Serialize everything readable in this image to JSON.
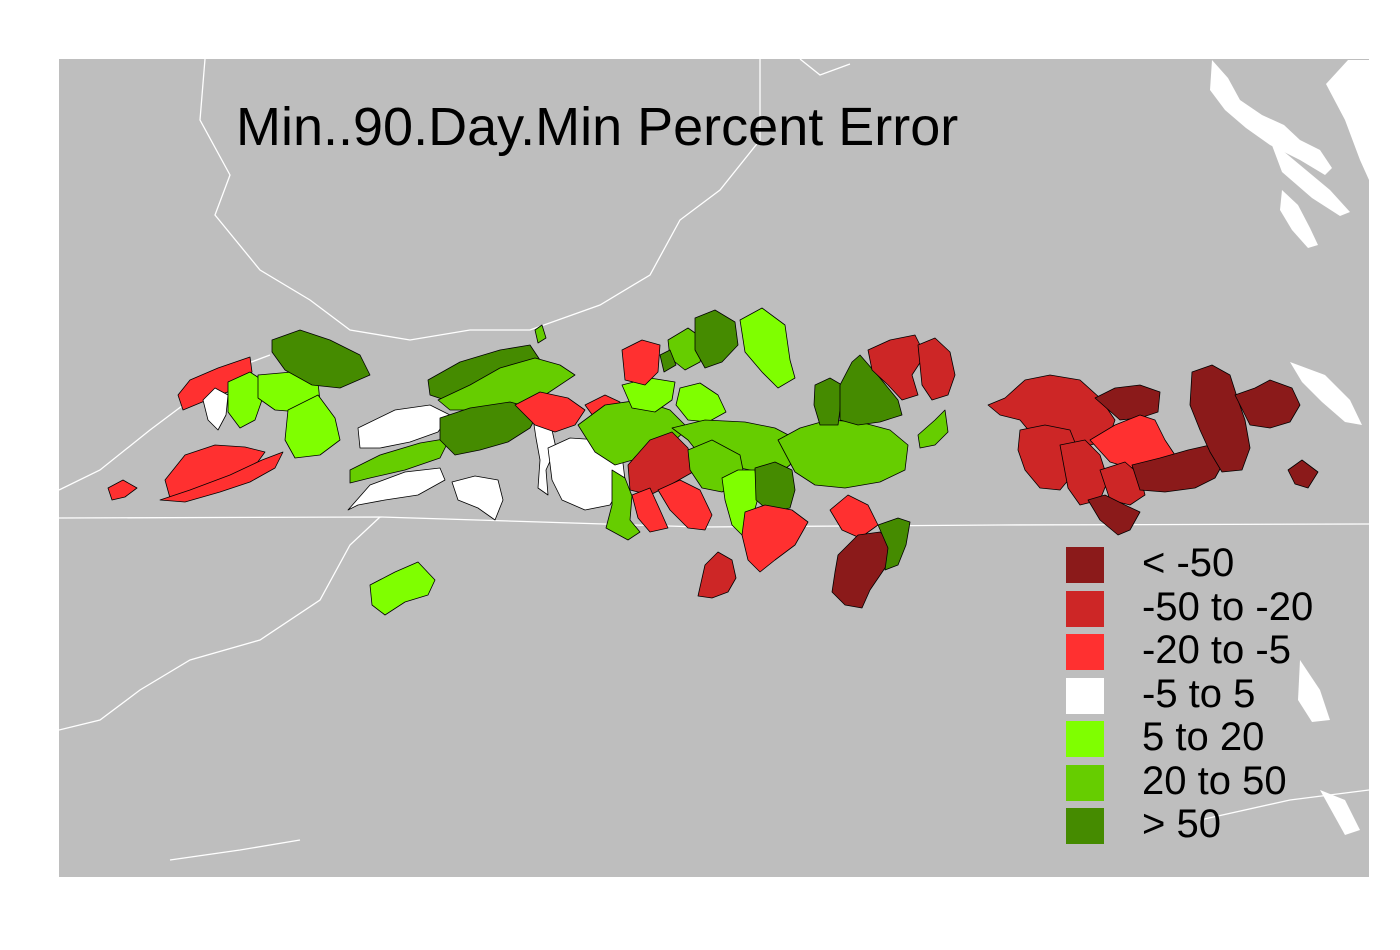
{
  "title": "Min..90.Day.Min Percent Error",
  "colors": {
    "background": "#bebebe",
    "boundary": "#ffffff",
    "outline": "#000000"
  },
  "legend": [
    {
      "label": "< -50",
      "color": "#8b1a1a"
    },
    {
      "label": "-50 to -20",
      "color": "#cd2626"
    },
    {
      "label": "-20 to -5",
      "color": "#ff3030"
    },
    {
      "label": "-5 to 5",
      "color": "#ffffff"
    },
    {
      "label": "5 to 20",
      "color": "#7fff00"
    },
    {
      "label": "20 to 50",
      "color": "#66cd00"
    },
    {
      "label": "> 50",
      "color": "#458b00"
    }
  ]
}
